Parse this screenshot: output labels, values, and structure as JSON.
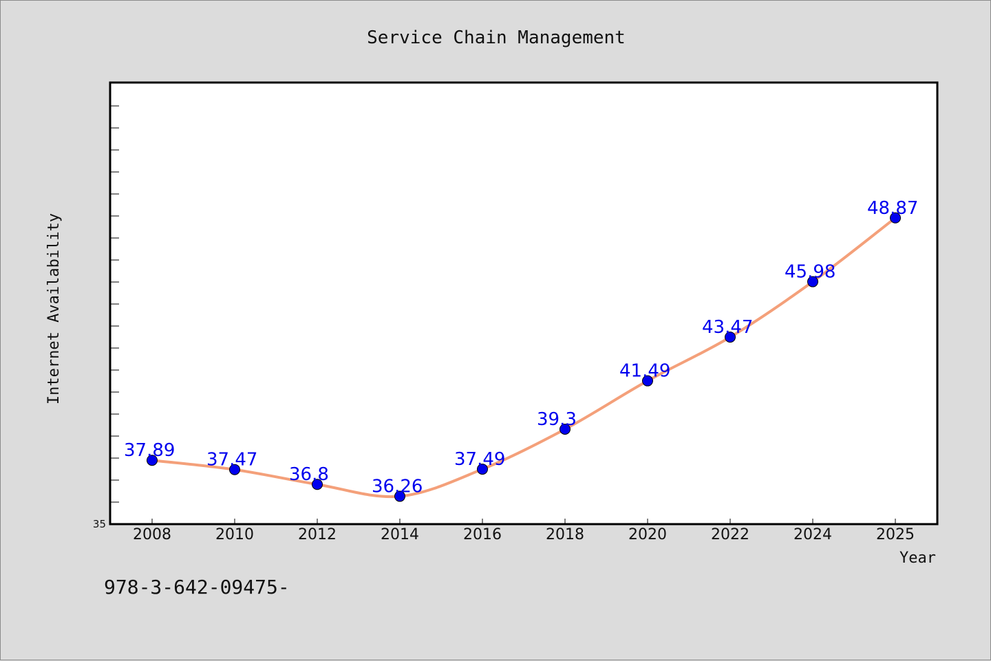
{
  "chart_data": {
    "type": "line",
    "title": "Service Chain Management",
    "xlabel": "Year",
    "ylabel": "Internet Availability",
    "categories": [
      "2008",
      "2010",
      "2012",
      "2014",
      "2016",
      "2018",
      "2020",
      "2022",
      "2024",
      "2025"
    ],
    "series": [
      {
        "values": [
          37.89,
          37.47,
          36.8,
          36.26,
          37.49,
          39.3,
          41.49,
          43.47,
          45.98,
          48.87
        ],
        "labels": [
          "37.89",
          "37.47",
          "36.8",
          "36.26",
          "37.49",
          "39.3",
          "41.49",
          "43.47",
          "45.98",
          "48.87"
        ],
        "line_color": "#f4a07a",
        "marker_color": "#0000ee",
        "label_color": "#0000ee"
      }
    ],
    "ylim": [
      35,
      55
    ],
    "y_tick_labels": [
      "35"
    ],
    "grid": false,
    "legend": "none"
  },
  "footer": {
    "text": "978-3-642-09475-"
  },
  "colors": {
    "background": "#dcdcdc",
    "plot_background": "#ffffff",
    "axis": "#000000"
  }
}
